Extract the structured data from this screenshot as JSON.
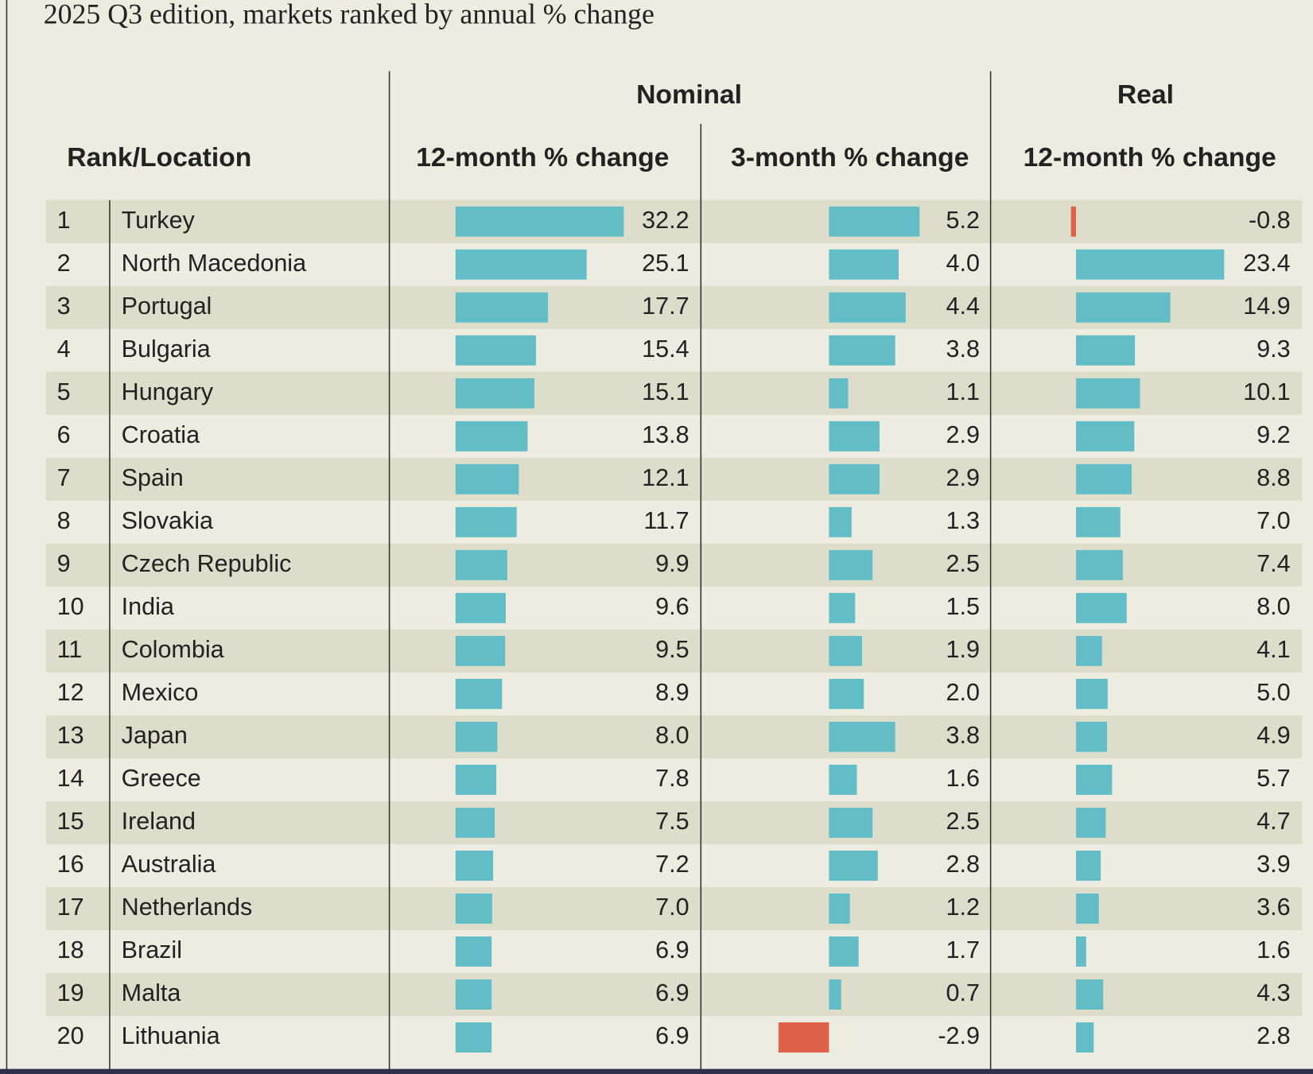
{
  "subtitle": "2025 Q3 edition, markets ranked by annual % change",
  "header": {
    "group_nominal": "Nominal",
    "group_real": "Real",
    "columns": [
      "Rank/Location",
      "12-month % change",
      "3-month % change",
      "12-month % change"
    ]
  },
  "bar_colors": {
    "positive": "#62bdc7",
    "negative": "#df6149"
  },
  "rows": [
    {
      "rank": 1,
      "location": "Turkey",
      "nominal_12m": 32.2,
      "nominal_3m": 5.2,
      "real_12m": -0.8
    },
    {
      "rank": 2,
      "location": "North Macedonia",
      "nominal_12m": 25.1,
      "nominal_3m": {
        "value": 4,
        "label": "4.0"
      },
      "real_12m": 23.4
    },
    {
      "rank": 3,
      "location": "Portugal",
      "nominal_12m": 17.7,
      "nominal_3m": 4.4,
      "real_12m": 14.9
    },
    {
      "rank": 4,
      "location": "Bulgaria",
      "nominal_12m": 15.4,
      "nominal_3m": 3.8,
      "real_12m": 9.3
    },
    {
      "rank": 5,
      "location": "Hungary",
      "nominal_12m": 15.1,
      "nominal_3m": 1.1,
      "real_12m": 10.1
    },
    {
      "rank": 6,
      "location": "Croatia",
      "nominal_12m": 13.8,
      "nominal_3m": 2.9,
      "real_12m": 9.2
    },
    {
      "rank": 7,
      "location": "Spain",
      "nominal_12m": 12.1,
      "nominal_3m": 2.9,
      "real_12m": 8.8
    },
    {
      "rank": 8,
      "location": "Slovakia",
      "nominal_12m": 11.7,
      "nominal_3m": 1.3,
      "real_12m": {
        "value": 7,
        "label": "7.0"
      }
    },
    {
      "rank": 9,
      "location": "Czech Republic",
      "nominal_12m": 9.9,
      "nominal_3m": 2.5,
      "real_12m": 7.4
    },
    {
      "rank": 10,
      "location": "India",
      "nominal_12m": 9.6,
      "nominal_3m": 1.5,
      "real_12m": {
        "value": 8,
        "label": "8.0"
      }
    },
    {
      "rank": 11,
      "location": "Colombia",
      "nominal_12m": 9.5,
      "nominal_3m": 1.9,
      "real_12m": 4.1
    },
    {
      "rank": 12,
      "location": "Mexico",
      "nominal_12m": 8.9,
      "nominal_3m": {
        "value": 2,
        "label": "2.0"
      },
      "real_12m": {
        "value": 5,
        "label": "5.0"
      }
    },
    {
      "rank": 13,
      "location": "Japan",
      "nominal_12m": {
        "value": 8,
        "label": "8.0"
      },
      "nominal_3m": 3.8,
      "real_12m": 4.9
    },
    {
      "rank": 14,
      "location": "Greece",
      "nominal_12m": 7.8,
      "nominal_3m": 1.6,
      "real_12m": 5.7
    },
    {
      "rank": 15,
      "location": "Ireland",
      "nominal_12m": 7.5,
      "nominal_3m": 2.5,
      "real_12m": 4.7
    },
    {
      "rank": 16,
      "location": "Australia",
      "nominal_12m": 7.2,
      "nominal_3m": 2.8,
      "real_12m": 3.9
    },
    {
      "rank": 17,
      "location": "Netherlands",
      "nominal_12m": {
        "value": 7,
        "label": "7.0"
      },
      "nominal_3m": 1.2,
      "real_12m": 3.6
    },
    {
      "rank": 18,
      "location": "Brazil",
      "nominal_12m": 6.9,
      "nominal_3m": 1.7,
      "real_12m": 1.6
    },
    {
      "rank": 19,
      "location": "Malta",
      "nominal_12m": 6.9,
      "nominal_3m": 0.7,
      "real_12m": 4.3
    },
    {
      "rank": 20,
      "location": "Lithuania",
      "nominal_12m": 6.9,
      "nominal_3m": -2.9,
      "real_12m": 2.8
    }
  ]
}
